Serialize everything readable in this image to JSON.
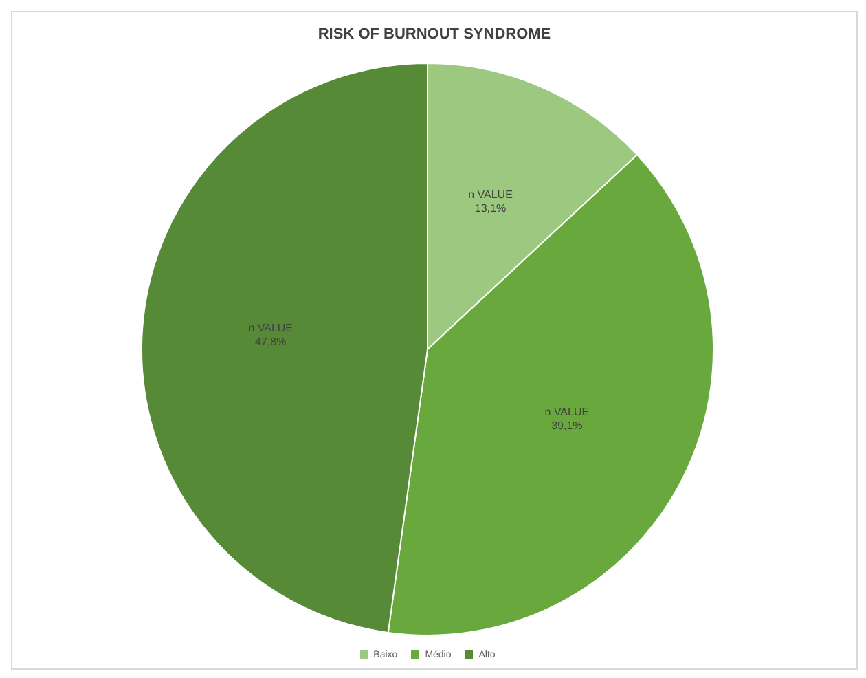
{
  "chart_data": {
    "type": "pie",
    "title": "RISK OF BURNOUT SYNDROME",
    "categories": [
      "Baixo",
      "Médio",
      "Alto"
    ],
    "values": [
      13.1,
      39.1,
      47.8
    ],
    "colors": [
      "#9cc97f",
      "#68a83c",
      "#578a37"
    ],
    "value_labels": [
      "n VALUE\n13,1%",
      "n VALUE\n39,1%",
      "n VALUE\n47,8%"
    ],
    "legend": "bottom"
  }
}
